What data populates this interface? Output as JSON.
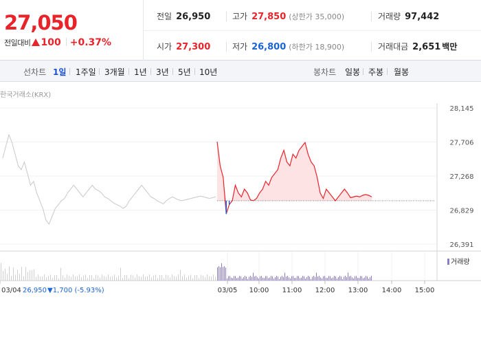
{
  "quote": {
    "price": "27,050",
    "change_label": "전일대비",
    "change_amount": "100",
    "change_pct": "+0.37%",
    "stats": {
      "prev_close": {
        "label": "전일",
        "value": "26,950"
      },
      "high": {
        "label": "고가",
        "value": "27,850",
        "sub": "(상한가 35,000)"
      },
      "volume": {
        "label": "거래량",
        "value": "97,442"
      },
      "open": {
        "label": "시가",
        "value": "27,300"
      },
      "low": {
        "label": "저가",
        "value": "26,800",
        "sub": "(하한가 18,900)"
      },
      "amount": {
        "label": "거래대금",
        "value": "2,651",
        "unit": "백만"
      }
    }
  },
  "toolbar": {
    "line_label": "선차트",
    "line_periods": [
      "1일",
      "1주일",
      "3개월",
      "1년",
      "3년",
      "5년",
      "10년"
    ],
    "active_period": "1일",
    "candle_label": "봉차트",
    "candle_periods": [
      "일봉",
      "주봉",
      "월봉"
    ]
  },
  "colors": {
    "up": "#e8232a",
    "down": "#1a64d6",
    "prev_day_line": "#c8c8c8",
    "today_fill": "#fde3e4",
    "volume": "#8c7bc8"
  },
  "chart_data": {
    "type": "line",
    "source_label": "한국거래소(KRX)",
    "y_ticks": [
      28145,
      27706,
      27268,
      26829,
      26391
    ],
    "y_tick_labels": [
      "28,145",
      "27,706",
      "27,268",
      "26,829",
      "26,391"
    ],
    "ylim": [
      26391,
      28145
    ],
    "baseline": 26950,
    "x_tick_labels": [
      "03/05",
      "10:00",
      "11:00",
      "12:00",
      "13:00",
      "14:00",
      "15:00"
    ],
    "prev_day": {
      "date": "03/04",
      "close": "26,950",
      "change_text": "▼1,700 (-5.93%)",
      "values": [
        27500,
        27650,
        27800,
        27700,
        27550,
        27400,
        27350,
        27450,
        27300,
        27150,
        27200,
        27050,
        26950,
        26850,
        26700,
        26650,
        26750,
        26850,
        26900,
        26950,
        26980,
        27050,
        27100,
        27150,
        27100,
        27050,
        27000,
        27050,
        27100,
        27150,
        27100,
        27080,
        27050,
        27000,
        26980,
        26950,
        26920,
        26900,
        26880,
        26850,
        26880,
        26950,
        27000,
        27050,
        27100,
        27150,
        27100,
        27050,
        27000,
        26980,
        26950,
        26930,
        26910,
        26950,
        26980,
        27000,
        26980,
        26960,
        26950,
        26960,
        26970,
        26980,
        26990,
        27000,
        27010,
        27000,
        26990,
        26980,
        26990,
        27000
      ]
    },
    "today": {
      "date": "03/05",
      "values": [
        27710,
        27400,
        27250,
        26780,
        26900,
        26950,
        27150,
        27050,
        27000,
        27100,
        27050,
        26960,
        26950,
        26980,
        27050,
        27100,
        27200,
        27150,
        27250,
        27300,
        27350,
        27500,
        27600,
        27450,
        27400,
        27550,
        27500,
        27600,
        27650,
        27700,
        27550,
        27450,
        27400,
        27250,
        27050,
        26980,
        27100,
        27050,
        27000,
        26950,
        27000,
        27050,
        27100,
        27050,
        26990,
        27000,
        27010,
        27000,
        27020,
        27030,
        27020,
        27000
      ]
    },
    "volume_label": "거래량"
  }
}
